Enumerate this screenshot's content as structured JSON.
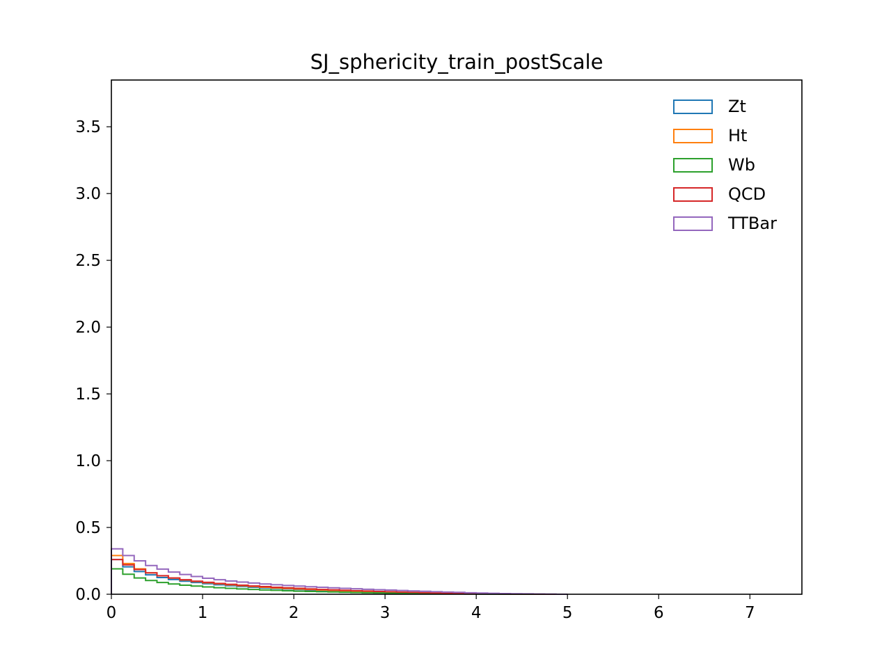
{
  "chart_data": {
    "type": "histogram-step",
    "title": "SJ_sphericity_train_postScale",
    "xlabel": "",
    "ylabel": "",
    "xlim": [
      0,
      7.57
    ],
    "ylim": [
      0,
      3.85
    ],
    "x_ticks": [
      "0",
      "1",
      "2",
      "3",
      "4",
      "5",
      "6",
      "7"
    ],
    "y_ticks": [
      "0.0",
      "0.5",
      "1.0",
      "1.5",
      "2.0",
      "2.5",
      "3.0",
      "3.5"
    ],
    "grid": false,
    "legend_position": "upper right",
    "bin_edges": [
      0.0,
      0.125,
      0.25,
      0.375,
      0.5,
      0.625,
      0.75,
      0.875,
      1.0,
      1.125,
      1.25,
      1.375,
      1.5,
      1.625,
      1.75,
      1.875,
      2.0,
      2.125,
      2.25,
      2.375,
      2.5,
      2.625,
      2.75,
      2.875,
      3.0,
      3.125,
      3.25,
      3.375,
      3.5,
      3.625,
      3.75,
      3.875,
      4.0,
      4.125,
      4.25,
      4.375,
      4.5,
      4.625,
      4.75,
      4.875,
      5.0
    ],
    "series": [
      {
        "name": "Zt",
        "color": "#1f77b4",
        "values": [
          0.26,
          0.205,
          0.17,
          0.145,
          0.125,
          0.11,
          0.098,
          0.088,
          0.079,
          0.071,
          0.064,
          0.058,
          0.052,
          0.047,
          0.043,
          0.039,
          0.035,
          0.031,
          0.028,
          0.025,
          0.022,
          0.019,
          0.017,
          0.015,
          0.013,
          0.011,
          0.009,
          0.008,
          0.006,
          0.005,
          0.004,
          0.003,
          0.002,
          0.0015,
          0.001,
          0.0007,
          0.0004,
          0.0002,
          0.0001,
          0.0
        ]
      },
      {
        "name": "Ht",
        "color": "#ff7f0e",
        "values": [
          0.29,
          0.23,
          0.19,
          0.16,
          0.138,
          0.121,
          0.107,
          0.096,
          0.086,
          0.078,
          0.07,
          0.064,
          0.058,
          0.052,
          0.047,
          0.043,
          0.039,
          0.035,
          0.031,
          0.028,
          0.025,
          0.022,
          0.019,
          0.017,
          0.015,
          0.013,
          0.011,
          0.009,
          0.007,
          0.006,
          0.005,
          0.004,
          0.003,
          0.002,
          0.0015,
          0.001,
          0.0006,
          0.0003,
          0.0001,
          0.0
        ]
      },
      {
        "name": "Wb",
        "color": "#2ca02c",
        "values": [
          0.19,
          0.15,
          0.122,
          0.103,
          0.088,
          0.077,
          0.068,
          0.061,
          0.055,
          0.049,
          0.044,
          0.04,
          0.036,
          0.032,
          0.029,
          0.026,
          0.023,
          0.021,
          0.019,
          0.017,
          0.015,
          0.013,
          0.011,
          0.01,
          0.008,
          0.007,
          0.006,
          0.005,
          0.004,
          0.003,
          0.0025,
          0.002,
          0.0015,
          0.001,
          0.0007,
          0.0004,
          0.0002,
          0.0001,
          0.0,
          0.0
        ]
      },
      {
        "name": "QCD",
        "color": "#d62728",
        "values": [
          0.26,
          0.22,
          0.185,
          0.16,
          0.139,
          0.122,
          0.109,
          0.098,
          0.089,
          0.081,
          0.074,
          0.068,
          0.062,
          0.057,
          0.052,
          0.048,
          0.044,
          0.04,
          0.036,
          0.033,
          0.03,
          0.027,
          0.024,
          0.021,
          0.019,
          0.016,
          0.014,
          0.012,
          0.01,
          0.008,
          0.007,
          0.005,
          0.004,
          0.003,
          0.002,
          0.0015,
          0.001,
          0.0005,
          0.0002,
          0.0
        ]
      },
      {
        "name": "TTBar",
        "color": "#9467bd",
        "values": [
          0.34,
          0.29,
          0.25,
          0.215,
          0.188,
          0.166,
          0.148,
          0.133,
          0.12,
          0.109,
          0.099,
          0.091,
          0.084,
          0.077,
          0.071,
          0.066,
          0.061,
          0.056,
          0.052,
          0.048,
          0.044,
          0.041,
          0.037,
          0.034,
          0.031,
          0.028,
          0.025,
          0.022,
          0.019,
          0.016,
          0.014,
          0.011,
          0.009,
          0.007,
          0.005,
          0.004,
          0.003,
          0.002,
          0.001,
          0.0
        ]
      }
    ]
  }
}
